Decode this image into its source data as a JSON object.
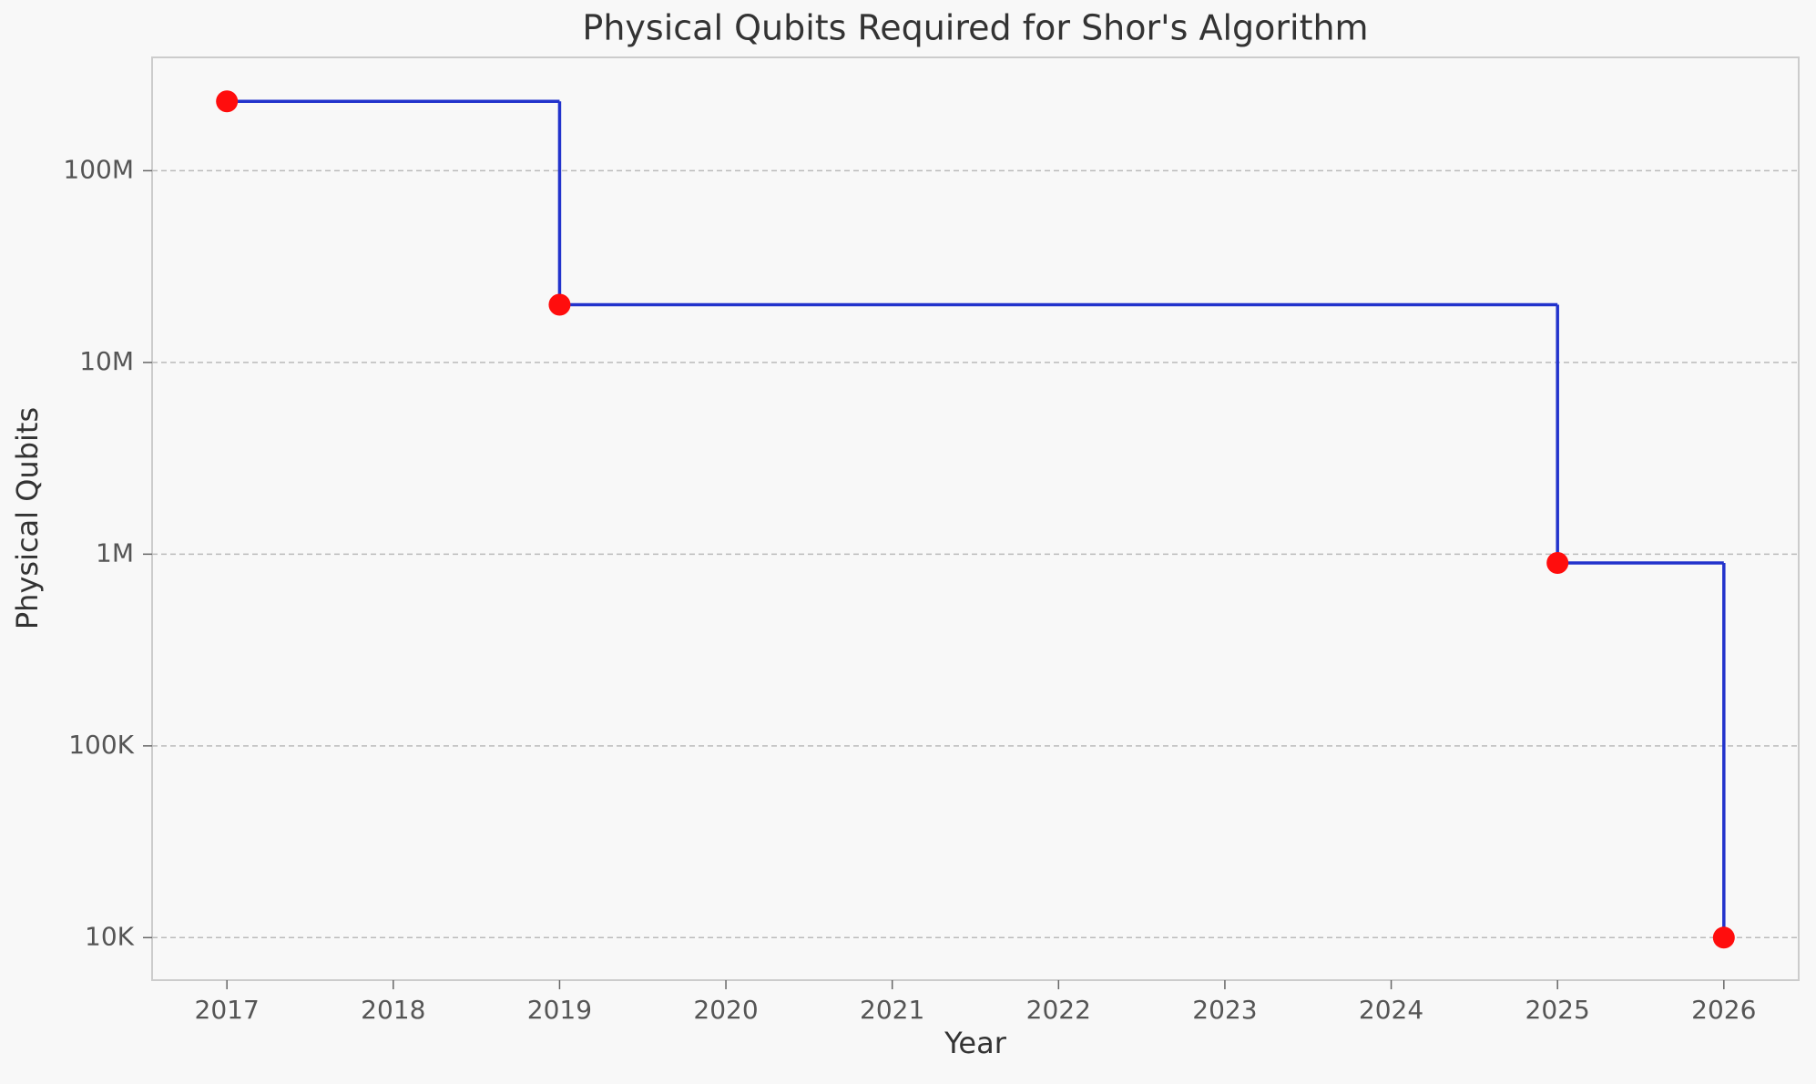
{
  "chart_data": {
    "type": "line",
    "step": "post",
    "title": "Physical Qubits Required for Shor's Algorithm",
    "x_label": "Year",
    "y_label": "Physical Qubits",
    "x": [
      2017,
      2019,
      2025,
      2026
    ],
    "values": [
      230000000,
      20000000,
      900000,
      10000
    ],
    "line_color": "#2233cc",
    "marker_color": "#ff0d0d",
    "log_y": true,
    "xlim": [
      2016.55,
      2026.45
    ],
    "xticks": [
      2017,
      2018,
      2019,
      2020,
      2021,
      2022,
      2023,
      2024,
      2025,
      2026
    ],
    "ylim": [
      6000,
      390000000
    ],
    "yticks": [
      {
        "value": 10000,
        "label": "10K"
      },
      {
        "value": 100000,
        "label": "100K"
      },
      {
        "value": 1000000,
        "label": "1M"
      },
      {
        "value": 10000000,
        "label": "10M"
      },
      {
        "value": 100000000,
        "label": "100M"
      }
    ],
    "grid": true
  }
}
